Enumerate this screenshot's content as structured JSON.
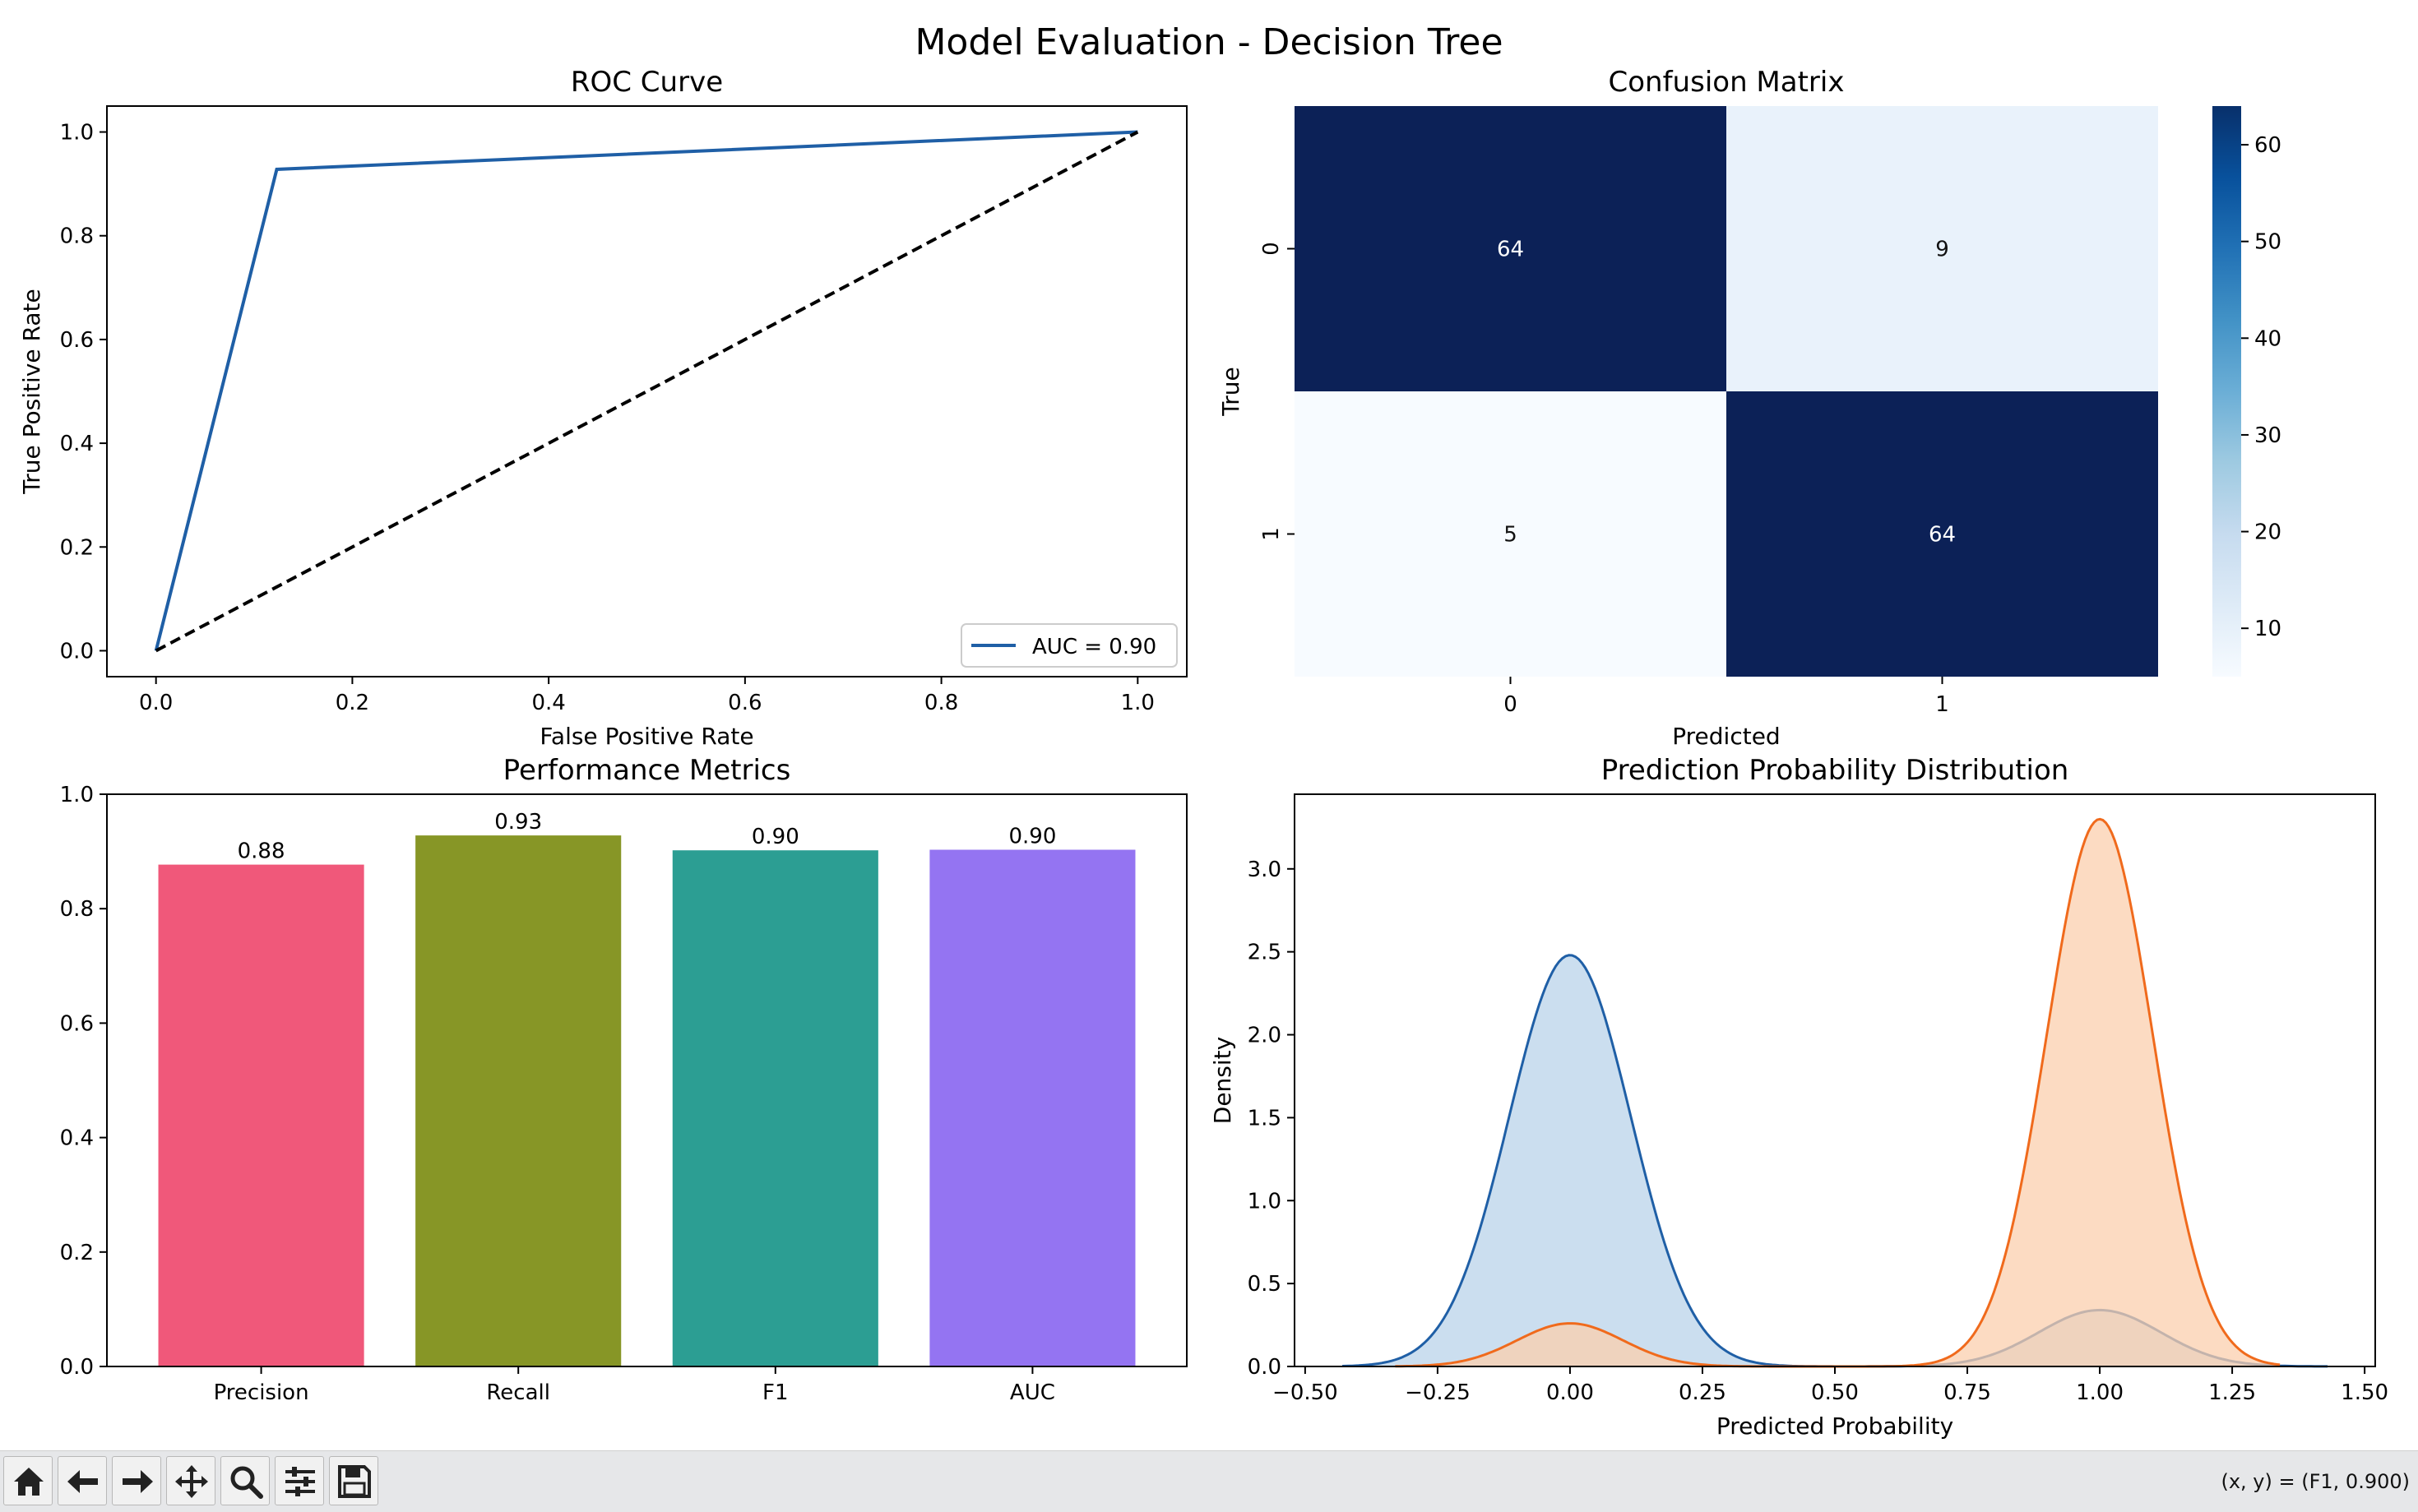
{
  "figure": {
    "title": "Model Evaluation - Decision Tree"
  },
  "chart_data": [
    {
      "type": "line",
      "title": "ROC Curve",
      "xlabel": "False Positive Rate",
      "ylabel": "True Positive Rate",
      "xlim": [
        -0.05,
        1.05
      ],
      "ylim": [
        -0.05,
        1.05
      ],
      "xticks": [
        "0.0",
        "0.2",
        "0.4",
        "0.6",
        "0.8",
        "1.0"
      ],
      "yticks": [
        "0.0",
        "0.2",
        "0.4",
        "0.6",
        "0.8",
        "1.0"
      ],
      "series": [
        {
          "name": "AUC = 0.90",
          "color": "#1f5fa6",
          "style": "solid",
          "points": [
            [
              0.0,
              0.0
            ],
            [
              0.123,
              0.928
            ],
            [
              1.0,
              1.0
            ]
          ]
        },
        {
          "color": "#000000",
          "style": "dashed",
          "points": [
            [
              0.0,
              0.0
            ],
            [
              1.0,
              1.0
            ]
          ]
        }
      ],
      "legend": "lower-right"
    },
    {
      "type": "heatmap",
      "title": "Confusion Matrix",
      "xlabel": "Predicted",
      "ylabel": "True",
      "x_categories": [
        "0",
        "1"
      ],
      "y_categories": [
        "0",
        "1"
      ],
      "values": [
        [
          64,
          9
        ],
        [
          5,
          64
        ]
      ],
      "colormap": "Blues",
      "colorbar_ticks": [
        "10",
        "20",
        "30",
        "40",
        "50",
        "60"
      ],
      "colorbar_range": [
        5,
        64
      ]
    },
    {
      "type": "bar",
      "title": "Performance Metrics",
      "categories": [
        "Precision",
        "Recall",
        "F1",
        "AUC"
      ],
      "values": [
        0.877,
        0.928,
        0.902,
        0.903
      ],
      "value_labels": [
        "0.88",
        "0.93",
        "0.90",
        "0.90"
      ],
      "colors": [
        "#f0587a",
        "#879626",
        "#2c9e93",
        "#9474f2"
      ],
      "ylim": [
        0.0,
        1.0
      ],
      "yticks": [
        "0.0",
        "0.2",
        "0.4",
        "0.6",
        "0.8",
        "1.0"
      ]
    },
    {
      "type": "area",
      "title": "Prediction Probability Distribution",
      "xlabel": "Predicted Probability",
      "ylabel": "Density",
      "xlim": [
        -0.52,
        1.52
      ],
      "ylim": [
        0.0,
        3.45
      ],
      "xticks": [
        "−0.50",
        "−0.25",
        "0.00",
        "0.25",
        "0.50",
        "0.75",
        "1.00",
        "1.25",
        "1.50"
      ],
      "yticks": [
        "0.0",
        "0.5",
        "1.0",
        "1.5",
        "2.0",
        "2.5",
        "3.0"
      ],
      "series": [
        {
          "color": "#1f5fa6",
          "fill": "#b9d3ea",
          "components": [
            {
              "center": 0.0,
              "peak": 2.48,
              "sigma": 0.115
            },
            {
              "center": 1.0,
              "peak": 0.34,
              "sigma": 0.115
            }
          ],
          "range": [
            -0.43,
            1.43
          ]
        },
        {
          "color": "#f06a1c",
          "fill": "#fbcfae",
          "components": [
            {
              "center": 0.0,
              "peak": 0.26,
              "sigma": 0.1
            },
            {
              "center": 1.0,
              "peak": 3.3,
              "sigma": 0.1
            }
          ],
          "range": [
            -0.33,
            1.34
          ]
        }
      ]
    }
  ],
  "toolbar": {
    "buttons": [
      "home-icon",
      "back-arrow-icon",
      "forward-arrow-icon",
      "pan-icon",
      "zoom-icon",
      "configure-subplots-icon",
      "save-icon"
    ],
    "coords": "(x, y) = (F1, 0.900)"
  }
}
